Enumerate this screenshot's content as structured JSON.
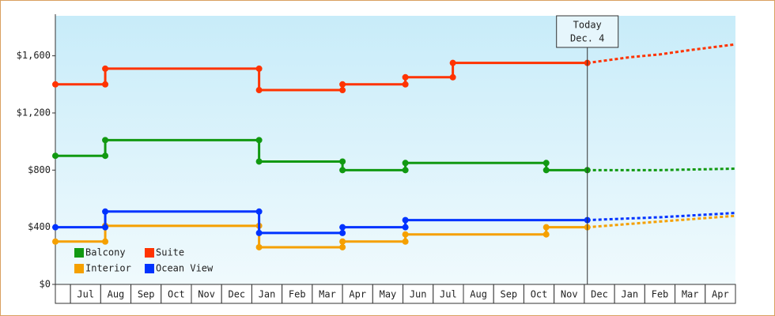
{
  "chart_data": {
    "type": "step-line",
    "ylim": [
      0,
      1880
    ],
    "yticks": [
      {
        "value": 0,
        "label": "$0"
      },
      {
        "value": 400,
        "label": "$400"
      },
      {
        "value": 800,
        "label": "$800"
      },
      {
        "value": 1200,
        "label": "$1,200"
      },
      {
        "value": 1600,
        "label": "$1,600"
      }
    ],
    "xlim": [
      0,
      22.5
    ],
    "xticks": [
      {
        "value": 1,
        "label": "Jul"
      },
      {
        "value": 2,
        "label": "Aug"
      },
      {
        "value": 3,
        "label": "Sep"
      },
      {
        "value": 4,
        "label": "Oct"
      },
      {
        "value": 5,
        "label": "Nov"
      },
      {
        "value": 6,
        "label": "Dec"
      },
      {
        "value": 7,
        "label": "Jan"
      },
      {
        "value": 8,
        "label": "Feb"
      },
      {
        "value": 9,
        "label": "Mar"
      },
      {
        "value": 10,
        "label": "Apr"
      },
      {
        "value": 11,
        "label": "May"
      },
      {
        "value": 12,
        "label": "Jun"
      },
      {
        "value": 13,
        "label": "Jul"
      },
      {
        "value": 14,
        "label": "Aug"
      },
      {
        "value": 15,
        "label": "Sep"
      },
      {
        "value": 16,
        "label": "Oct"
      },
      {
        "value": 17,
        "label": "Nov"
      },
      {
        "value": 18,
        "label": "Dec"
      },
      {
        "value": 19,
        "label": "Jan"
      },
      {
        "value": 20,
        "label": "Feb"
      },
      {
        "value": 21,
        "label": "Mar"
      },
      {
        "value": 22,
        "label": "Apr"
      }
    ],
    "grid": false,
    "annotation": {
      "x": 17.6,
      "lines": [
        "Today",
        "Dec. 4"
      ]
    },
    "series": [
      {
        "name": "Balcony",
        "color": "#119911",
        "x": [
          0,
          1.65,
          1.65,
          6.74,
          6.74,
          9.5,
          9.5,
          11.58,
          11.58,
          16.24,
          16.24,
          17.6
        ],
        "values": [
          900,
          900,
          1010,
          1010,
          860,
          860,
          800,
          800,
          850,
          850,
          800,
          800
        ],
        "forecast": {
          "x": [
            17.6,
            20,
            22.5
          ],
          "values": [
            800,
            800,
            810
          ]
        }
      },
      {
        "name": "Suite",
        "color": "#ff3300",
        "x": [
          0,
          1.65,
          1.65,
          6.74,
          6.74,
          9.5,
          9.5,
          11.58,
          11.58,
          13.15,
          13.15,
          17.6
        ],
        "values": [
          1400,
          1400,
          1510,
          1510,
          1360,
          1360,
          1400,
          1400,
          1450,
          1450,
          1550,
          1550
        ],
        "forecast": {
          "x": [
            17.6,
            19,
            20,
            21,
            22.5
          ],
          "values": [
            1550,
            1590,
            1610,
            1640,
            1680
          ]
        }
      },
      {
        "name": "Interior",
        "color": "#f5a000",
        "x": [
          0,
          1.65,
          1.65,
          6.74,
          6.74,
          9.5,
          9.5,
          11.58,
          11.58,
          16.24,
          16.24,
          17.6
        ],
        "values": [
          300,
          300,
          410,
          410,
          260,
          260,
          300,
          300,
          350,
          350,
          400,
          400
        ],
        "forecast": {
          "x": [
            17.6,
            20,
            22.5
          ],
          "values": [
            400,
            440,
            480
          ]
        }
      },
      {
        "name": "Ocean View",
        "color": "#0033ff",
        "x": [
          0,
          1.65,
          1.65,
          6.74,
          6.74,
          9.5,
          9.5,
          11.58,
          11.58,
          17.6
        ],
        "values": [
          400,
          400,
          510,
          510,
          360,
          360,
          400,
          400,
          450,
          450
        ],
        "forecast": {
          "x": [
            17.6,
            20,
            22.5
          ],
          "values": [
            450,
            470,
            500
          ]
        }
      }
    ]
  }
}
